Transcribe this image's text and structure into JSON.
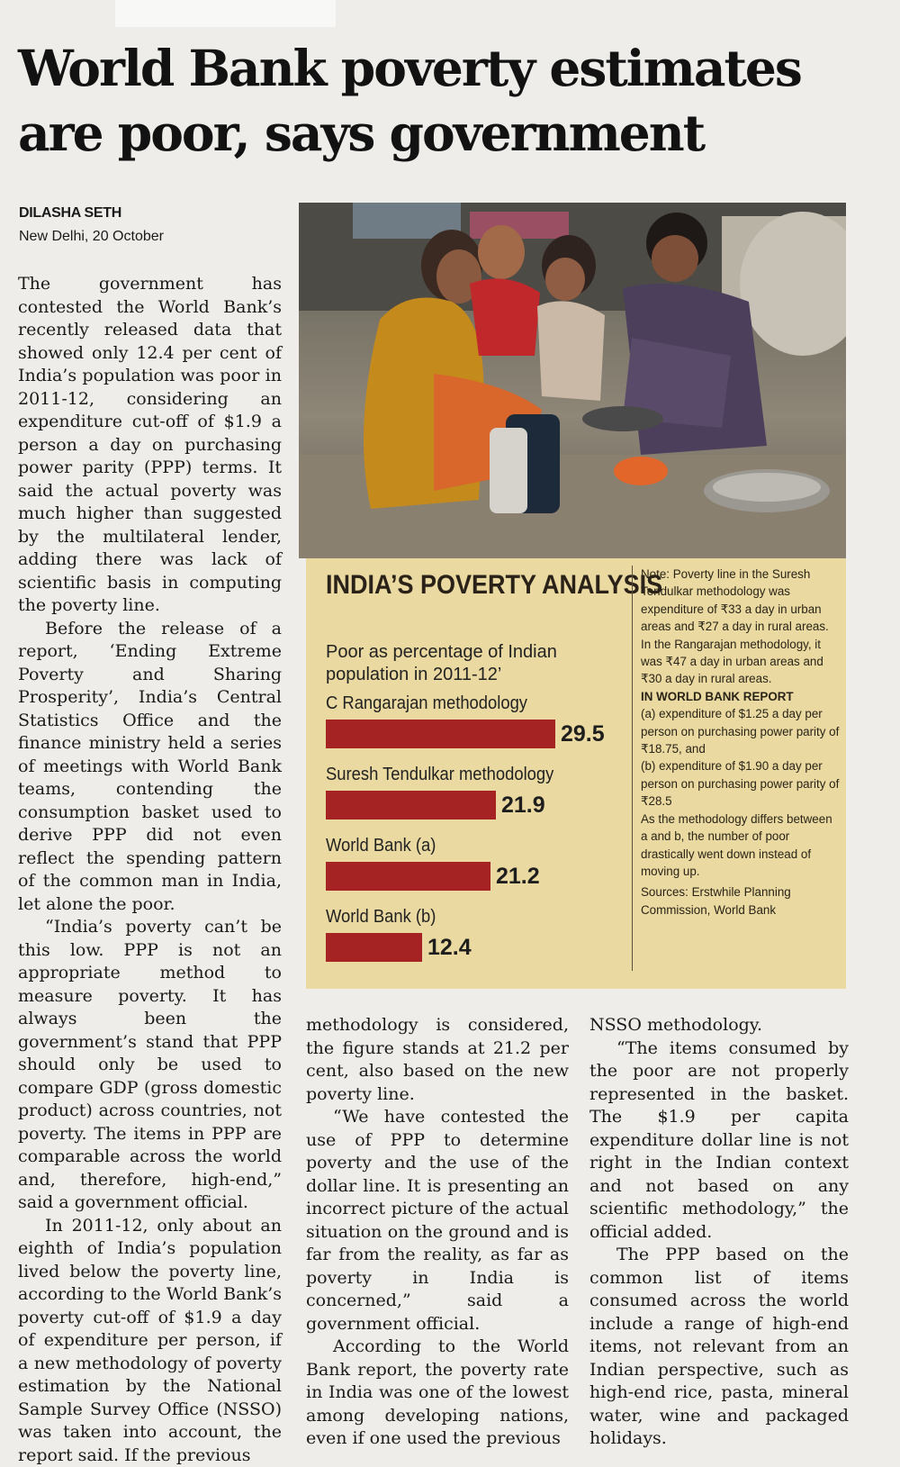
{
  "article": {
    "headline": "World Bank poverty estimates are poor, says government",
    "author": "DILASHA SETH",
    "dateline": "New Delhi, 20 October",
    "col1": [
      "The government has contested the World Bank’s recently released data that showed only 12.4 per cent of India’s population was poor in 2011-12, considering an expenditure cut-off of $1.9 a person a day on purchasing power parity (PPP) terms. It said the actual poverty was much higher than suggested by the multilateral lender, adding there was lack of scientific basis in computing the poverty line.",
      "Before the release of a report, ‘Ending Extreme Poverty and Sharing Prosperity’, India’s Central Statistics Office and the finance ministry held a series of meetings with World Bank teams, contending the consumption basket used to derive PPP did not even reflect the spending pattern of the common man in India, let alone the poor.",
      "“India’s poverty can’t be this low. PPP is not an appropriate method to measure poverty. It has always been the government’s stand that PPP should only be used to compare GDP (gross domestic product) across countries, not poverty. The items in PPP are comparable across the world and, therefore, high-end,” said a government official.",
      "In 2011-12, only about an eighth of India’s population lived below the poverty line, according to the World Bank’s poverty cut-off of $1.9 a day of expenditure per person, if a new methodology of poverty estimation by the National Sample Survey Office (NSSO) was taken into account, the report said. If the previous"
    ],
    "col2": [
      "methodology is considered, the figure stands at 21.2 per cent, also based on the new poverty line.",
      "“We have contested the use of PPP to determine poverty and the use of the dollar line. It is presenting an incorrect picture of the actual situation on the ground and is far from the reality, as far as poverty in India is concerned,” said a government official.",
      "According to the World Bank report, the poverty rate in India was one of the lowest among developing nations, even if one used the previous"
    ],
    "col3": [
      "NSSO methodology.",
      "“The items consumed by the poor are not properly represented in the basket. The $1.9 per capita expenditure dollar line is not right in the Indian context and not based on any scientific methodology,” the official added.",
      "The PPP based on the common list of items consumed across the world include a range of high-end items, not relevant from an Indian perspective, such as high-end rice, pasta, mineral water, wine and packaged holidays."
    ]
  },
  "graphic": {
    "title": "INDIA’S POVERTY ANALYSIS",
    "subtitle": "Poor as percentage of Indian population in 2011-12’",
    "note": "Note: Poverty line in the Suresh Tendulkar methodology was expenditure of ₹33 a day in urban areas and ₹27 a day in rural areas. In the Rangarajan methodology, it was ₹47 a day in urban areas and ₹30 a day in rural areas.",
    "wb_head": "IN WORLD BANK REPORT",
    "wb_a": "(a) expenditure of $1.25 a day per person on purchasing power parity of ₹18.75, and",
    "wb_b": "(b) expenditure of $1.90 a day per person on purchasing power parity of ₹28.5",
    "diff": "As the methodology differs between a and b, the number of poor drastically went down instead of moving up.",
    "sources": "Sources: Erstwhile Planning Commission, World Bank",
    "bar_color": "#a52323"
  },
  "chart_data": {
    "type": "bar",
    "categories": [
      "C Rangarajan methodology",
      "Suresh Tendulkar methodology",
      "World Bank (a)",
      "World Bank (b)"
    ],
    "values": [
      29.5,
      21.9,
      21.2,
      12.4
    ],
    "value_labels": [
      "29.5",
      "21.9",
      "21.2",
      "12.4"
    ],
    "title": "INDIA’S POVERTY ANALYSIS",
    "subtitle": "Poor as percentage of Indian population in 2011-12’",
    "orientation": "horizontal",
    "xlabel": "",
    "ylabel": ""
  }
}
